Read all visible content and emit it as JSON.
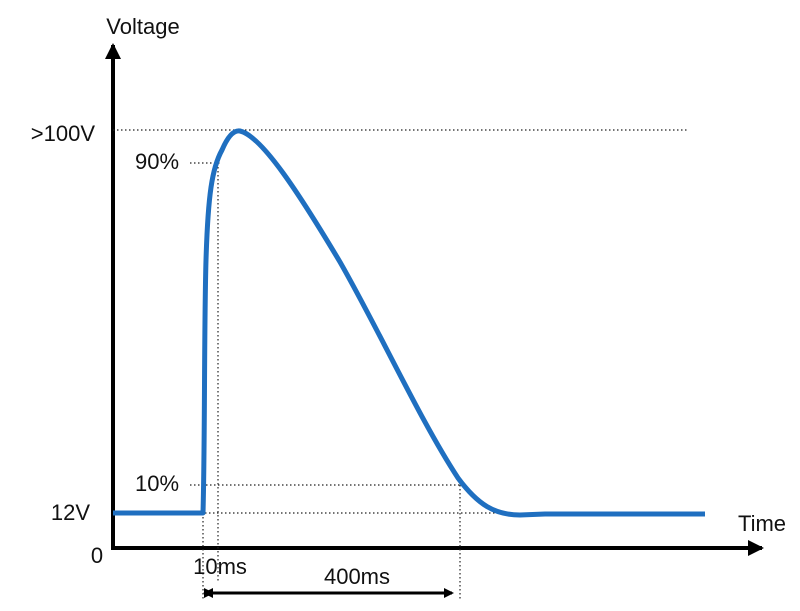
{
  "y_axis_label": "Voltage",
  "x_axis_label": "Time",
  "levels": {
    "peak": ">100V",
    "ninety": "90%",
    "ten": "10%",
    "base": "12V",
    "zero": "0"
  },
  "times": {
    "rise": "10ms",
    "duration": "400ms"
  }
}
